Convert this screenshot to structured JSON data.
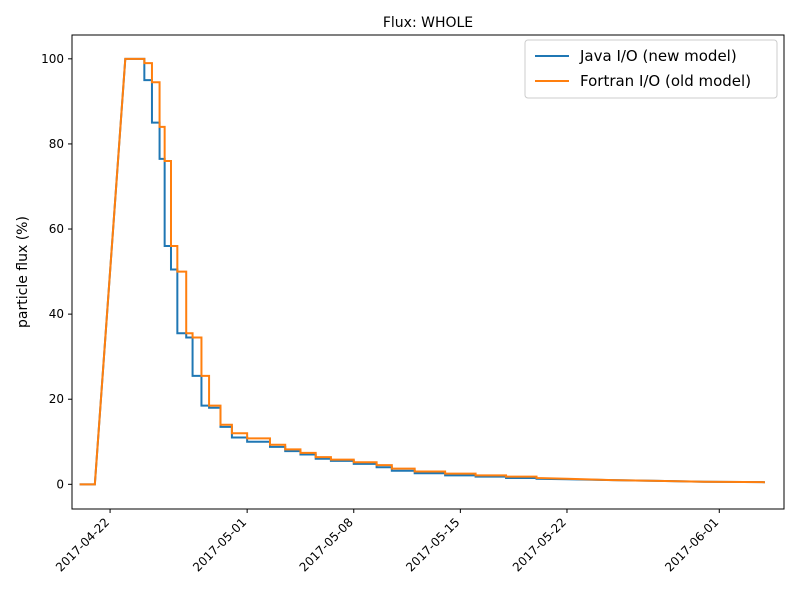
{
  "chart_data": {
    "type": "line",
    "title": "Flux: WHOLE",
    "xlabel": "",
    "ylabel": "particle flux (%)",
    "x_ticks": [
      "2017-04-22",
      "2017-05-01",
      "2017-05-08",
      "2017-05-15",
      "2017-05-22",
      "2017-06-01"
    ],
    "y_ticks": [
      0,
      20,
      40,
      60,
      80,
      100
    ],
    "xlim": [
      "2017-04-19 12:00",
      "2017-06-05 06:00"
    ],
    "ylim": [
      -5.8,
      105.6
    ],
    "grid": false,
    "legend_position": "top-right",
    "colors": {
      "series_0": "#1f77b4",
      "series_1": "#ff7f0e"
    },
    "series": [
      {
        "name": "Java I/O (new model)",
        "x": [
          "2017-04-20 00:00",
          "2017-04-21 00:00",
          "2017-04-23 00:00",
          "2017-04-24 06:00",
          "2017-04-24 06:00",
          "2017-04-24 18:00",
          "2017-04-24 18:00",
          "2017-04-25 06:00",
          "2017-04-25 06:00",
          "2017-04-25 14:00",
          "2017-04-25 14:00",
          "2017-04-26 00:00",
          "2017-04-26 00:00",
          "2017-04-26 10:00",
          "2017-04-26 10:00",
          "2017-04-27 00:00",
          "2017-04-27 00:00",
          "2017-04-27 10:00",
          "2017-04-27 10:00",
          "2017-04-28 00:00",
          "2017-04-28 00:00",
          "2017-04-28 12:00",
          "2017-04-28 12:00",
          "2017-04-29 06:00",
          "2017-04-29 06:00",
          "2017-04-30 00:00",
          "2017-04-30 00:00",
          "2017-05-01 00:00",
          "2017-05-01 00:00",
          "2017-05-02 12:00",
          "2017-05-02 12:00",
          "2017-05-03 12:00",
          "2017-05-03 12:00",
          "2017-05-04 12:00",
          "2017-05-04 12:00",
          "2017-05-05 12:00",
          "2017-05-05 12:00",
          "2017-05-06 12:00",
          "2017-05-06 12:00",
          "2017-05-08 00:00",
          "2017-05-08 00:00",
          "2017-05-09 12:00",
          "2017-05-09 12:00",
          "2017-05-10 12:00",
          "2017-05-10 12:00",
          "2017-05-12 00:00",
          "2017-05-12 00:00",
          "2017-05-14 00:00",
          "2017-05-14 00:00",
          "2017-05-16 00:00",
          "2017-05-16 00:00",
          "2017-05-18 00:00",
          "2017-05-18 00:00",
          "2017-05-20 00:00",
          "2017-05-20 00:00",
          "2017-05-22 00:00",
          "2017-05-25 00:00",
          "2017-05-28 00:00",
          "2017-05-31 00:00",
          "2017-06-04 00:00"
        ],
        "y": [
          0,
          0,
          100,
          100,
          95,
          95,
          85,
          85,
          76.5,
          76.5,
          56,
          56,
          50.5,
          50.5,
          35.5,
          35.5,
          34.5,
          34.5,
          25.5,
          25.5,
          18.5,
          18.5,
          18,
          18,
          13.5,
          13.5,
          11,
          11,
          10,
          10,
          8.8,
          8.8,
          7.8,
          7.8,
          7,
          7,
          6,
          6,
          5.5,
          5.5,
          4.8,
          4.8,
          4,
          4,
          3.2,
          3.2,
          2.6,
          2.6,
          2.1,
          2.1,
          1.8,
          1.8,
          1.5,
          1.5,
          1.3,
          1.2,
          1.0,
          0.8,
          0.6,
          0.5
        ]
      },
      {
        "name": "Fortran I/O (old model)",
        "x": [
          "2017-04-20 00:00",
          "2017-04-21 00:00",
          "2017-04-23 00:00",
          "2017-04-24 06:00",
          "2017-04-24 06:00",
          "2017-04-24 18:00",
          "2017-04-24 18:00",
          "2017-04-25 06:00",
          "2017-04-25 06:00",
          "2017-04-25 14:00",
          "2017-04-25 14:00",
          "2017-04-26 00:00",
          "2017-04-26 00:00",
          "2017-04-26 10:00",
          "2017-04-26 10:00",
          "2017-04-27 00:00",
          "2017-04-27 00:00",
          "2017-04-27 10:00",
          "2017-04-27 10:00",
          "2017-04-28 00:00",
          "2017-04-28 00:00",
          "2017-04-28 12:00",
          "2017-04-28 12:00",
          "2017-04-29 06:00",
          "2017-04-29 06:00",
          "2017-04-30 00:00",
          "2017-04-30 00:00",
          "2017-05-01 00:00",
          "2017-05-01 00:00",
          "2017-05-02 12:00",
          "2017-05-02 12:00",
          "2017-05-03 12:00",
          "2017-05-03 12:00",
          "2017-05-04 12:00",
          "2017-05-04 12:00",
          "2017-05-05 12:00",
          "2017-05-05 12:00",
          "2017-05-06 12:00",
          "2017-05-06 12:00",
          "2017-05-08 00:00",
          "2017-05-08 00:00",
          "2017-05-09 12:00",
          "2017-05-09 12:00",
          "2017-05-10 12:00",
          "2017-05-10 12:00",
          "2017-05-12 00:00",
          "2017-05-12 00:00",
          "2017-05-14 00:00",
          "2017-05-14 00:00",
          "2017-05-16 00:00",
          "2017-05-16 00:00",
          "2017-05-18 00:00",
          "2017-05-18 00:00",
          "2017-05-20 00:00",
          "2017-05-20 00:00",
          "2017-05-22 00:00",
          "2017-05-25 00:00",
          "2017-05-28 00:00",
          "2017-05-31 00:00",
          "2017-06-04 00:00"
        ],
        "y": [
          0,
          0,
          100,
          100,
          99,
          99,
          94.5,
          94.5,
          84,
          84,
          76,
          76,
          56,
          56,
          50,
          50,
          35.5,
          35.5,
          34.5,
          34.5,
          25.5,
          25.5,
          18.5,
          18.5,
          14,
          14,
          12,
          12,
          10.8,
          10.8,
          9.3,
          9.3,
          8.2,
          8.2,
          7.4,
          7.4,
          6.4,
          6.4,
          5.8,
          5.8,
          5.2,
          5.2,
          4.5,
          4.5,
          3.7,
          3.7,
          3.0,
          3.0,
          2.5,
          2.5,
          2.1,
          2.1,
          1.8,
          1.8,
          1.5,
          1.3,
          1.0,
          0.8,
          0.6,
          0.5
        ]
      }
    ]
  }
}
